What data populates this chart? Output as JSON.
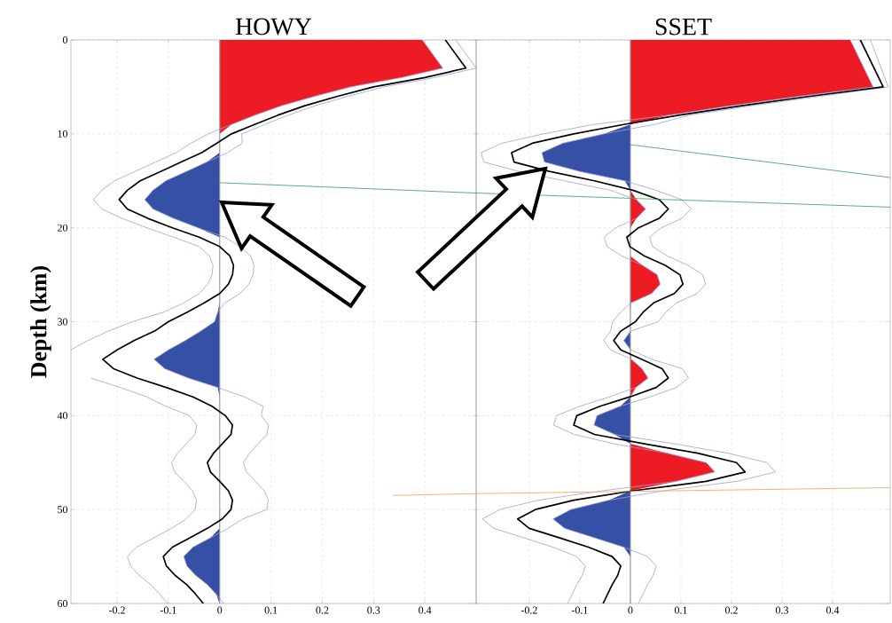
{
  "chart_data": [
    {
      "type": "line",
      "orientation": "horizontal",
      "title": "HOWY",
      "ylabel": "Depth (km)",
      "grid": true,
      "x": [
        0,
        3,
        4,
        5,
        6,
        7,
        8,
        9,
        10,
        11,
        12,
        13,
        14,
        15,
        16,
        17,
        18,
        19,
        20,
        21,
        22,
        23,
        24,
        25,
        26,
        27,
        28,
        29,
        30,
        31,
        32,
        33,
        34,
        35,
        36,
        37,
        38,
        39,
        40,
        41,
        42,
        43,
        44,
        45,
        46,
        47,
        48,
        49,
        50,
        51,
        52,
        53,
        54,
        55,
        56,
        57,
        58,
        59,
        60
      ],
      "series": [
        {
          "type": "area",
          "color": "#ed1c24",
          "values": [
            0.395,
            0.435,
            0.355,
            0.255,
            0.185,
            0.121,
            0.069,
            0.023,
            0,
            0,
            0,
            0,
            0,
            0,
            0,
            0,
            0,
            0,
            0,
            0,
            0,
            0,
            0,
            0,
            0,
            0,
            0,
            0,
            0,
            0,
            0,
            0,
            0,
            0,
            0,
            0,
            0,
            0,
            0,
            0,
            0,
            0,
            0,
            0,
            0,
            0,
            0,
            0,
            0,
            0,
            0,
            0,
            0,
            0,
            0,
            0,
            0,
            0,
            0
          ]
        },
        {
          "type": "area",
          "color": "#3550a5",
          "values": [
            0,
            0,
            0,
            0,
            0,
            0,
            0,
            0,
            0,
            0,
            0,
            -0.025,
            -0.065,
            -0.105,
            -0.13,
            -0.146,
            -0.13,
            -0.09,
            -0.042,
            0,
            0,
            0,
            0,
            0,
            0,
            0,
            0,
            -0.004,
            -0.01,
            -0.037,
            -0.067,
            -0.1,
            -0.128,
            -0.107,
            -0.061,
            -0.004,
            0,
            0,
            0,
            0,
            0,
            0,
            0,
            0,
            0,
            0,
            0,
            0,
            0,
            0,
            0,
            -0.018,
            -0.052,
            -0.07,
            -0.064,
            -0.047,
            -0.024,
            -0.007,
            0
          ]
        },
        {
          "color": "#a0a0d7",
          "values": [
            0.395,
            0.435,
            0.355,
            0.255,
            0.185,
            0.121,
            0.069,
            0.023,
            -0.022,
            -0.056,
            -0.085,
            -0.125,
            -0.165,
            -0.205,
            -0.23,
            -0.246,
            -0.23,
            -0.19,
            -0.142,
            -0.09,
            -0.04,
            -0.02,
            -0.013,
            -0.015,
            -0.023,
            -0.04,
            -0.07,
            -0.11,
            -0.17,
            -0.217,
            -0.257,
            -0.29,
            null,
            null,
            -0.251,
            -0.194,
            -0.142,
            -0.105,
            -0.059,
            -0.045,
            -0.048,
            -0.065,
            -0.082,
            -0.094,
            -0.088,
            -0.07,
            -0.053,
            -0.045,
            -0.048,
            -0.065,
            -0.094,
            -0.128,
            -0.162,
            -0.18,
            -0.174,
            -0.157,
            -0.134,
            -0.117,
            -0.102
          ]
        },
        {
          "color": "#a0a0d7",
          "values": [
            0.46,
            0.5,
            0.42,
            0.32,
            0.25,
            0.186,
            0.134,
            0.088,
            0.043,
            0.044,
            0.015,
            -0.025,
            -0.065,
            -0.105,
            -0.13,
            -0.146,
            -0.13,
            -0.09,
            -0.042,
            0.01,
            0.04,
            0.06,
            0.067,
            0.065,
            0.057,
            0.04,
            0.01,
            -0.004,
            -0.01,
            -0.037,
            -0.067,
            -0.1,
            -0.128,
            -0.107,
            -0.061,
            -0.004,
            0.048,
            0.085,
            0.081,
            0.095,
            0.092,
            0.075,
            0.058,
            0.046,
            0.052,
            0.07,
            0.087,
            0.095,
            0.092,
            0.045,
            0.016,
            -0.018,
            -0.052,
            -0.07,
            -0.064,
            -0.047,
            -0.024,
            -0.007,
            0.008
          ]
        },
        {
          "color": "#000000",
          "values": [
            0.44,
            0.48,
            0.4,
            0.3,
            0.23,
            0.166,
            0.114,
            0.068,
            0.023,
            -0.006,
            -0.035,
            -0.075,
            -0.115,
            -0.155,
            -0.18,
            -0.196,
            -0.18,
            -0.14,
            -0.092,
            -0.04,
            0,
            0.02,
            0.027,
            0.025,
            0.017,
            0,
            -0.03,
            -0.064,
            -0.1,
            -0.127,
            -0.167,
            -0.2,
            -0.228,
            -0.207,
            -0.161,
            -0.104,
            -0.052,
            -0.015,
            0.011,
            0.025,
            0.022,
            0.005,
            -0.012,
            -0.024,
            -0.018,
            0,
            0.017,
            0.025,
            0.022,
            0.005,
            -0.024,
            -0.058,
            -0.092,
            -0.11,
            -0.104,
            -0.087,
            -0.064,
            -0.047,
            -0.032
          ]
        },
        {
          "color": "#3a9a5c",
          "x": [
            15.2,
            16.3
          ],
          "values": [
            0,
            0.5
          ]
        },
        {
          "color": "#f5a04a",
          "x": [
            48.5,
            48.3
          ],
          "values": [
            0.338,
            0.5
          ]
        }
      ],
      "xlim": [
        -0.29,
        0.5
      ],
      "xticks": [
        -0.2,
        -0.1,
        0,
        0.1,
        0.2,
        0.3,
        0.4
      ],
      "ylim": [
        60,
        0
      ],
      "yticks": [
        0,
        10,
        20,
        30,
        40,
        50,
        60
      ]
    },
    {
      "type": "line",
      "orientation": "horizontal",
      "title": "SSET",
      "grid": true,
      "tick_labels": "x",
      "x": [
        0,
        5,
        6,
        7,
        8,
        9,
        10,
        11,
        12,
        13,
        14,
        15,
        16,
        17,
        18,
        19,
        20,
        21,
        22,
        23,
        24,
        25,
        26,
        27,
        28,
        29,
        30,
        31,
        32,
        33,
        34,
        35,
        36,
        37,
        38,
        39,
        40,
        41,
        42,
        43,
        44,
        45,
        46,
        47,
        48,
        49,
        50,
        51,
        52,
        53,
        54,
        55,
        56,
        57,
        58,
        59,
        60
      ],
      "series": [
        {
          "type": "area",
          "color": "#ed1c24",
          "values": [
            0.435,
            0.48,
            0.335,
            0.2,
            0.078,
            0,
            0,
            0,
            0,
            0,
            0,
            0,
            0,
            0.012,
            0.03,
            0.012,
            0,
            0,
            0,
            0,
            0.024,
            0.053,
            0.059,
            0.042,
            0.001,
            0,
            0,
            0,
            0,
            0,
            0.002,
            0.023,
            0.035,
            0.011,
            0,
            0,
            0,
            0,
            0,
            0,
            0.073,
            0.15,
            0.167,
            0.09,
            0,
            0,
            0,
            0,
            0,
            0,
            0,
            0,
            0,
            0,
            0,
            0,
            0
          ]
        },
        {
          "type": "area",
          "color": "#3550a5",
          "values": [
            0,
            0,
            0,
            0,
            0,
            0,
            -0.052,
            -0.134,
            -0.175,
            -0.17,
            -0.1,
            -0.011,
            0,
            0,
            0,
            0,
            0,
            0,
            0,
            0,
            0,
            0,
            0,
            0,
            0,
            0,
            0,
            0,
            -0.013,
            0,
            0,
            0,
            0,
            0,
            0,
            -0.02,
            -0.066,
            -0.072,
            -0.031,
            0,
            0,
            0,
            0,
            0,
            0,
            -0.042,
            -0.118,
            -0.153,
            -0.13,
            -0.071,
            -0.013,
            0,
            0,
            0,
            0,
            0,
            0
          ]
        },
        {
          "color": "#a0a0d7",
          "values": [
            0.435,
            0.48,
            0.335,
            0.2,
            0.078,
            -0.073,
            -0.172,
            -0.254,
            -0.295,
            -0.29,
            -0.22,
            -0.131,
            -0.04,
            0.012,
            0.03,
            0.012,
            -0.029,
            -0.052,
            -0.046,
            -0.017,
            0.024,
            0.053,
            0.059,
            0.042,
            0.001,
            -0.02,
            -0.035,
            -0.039,
            -0.053,
            -0.039,
            0.002,
            0.023,
            0.035,
            0.011,
            -0.041,
            -0.1,
            -0.146,
            -0.152,
            -0.111,
            -0.032,
            0.073,
            0.15,
            0.167,
            0.09,
            -0.055,
            -0.182,
            -0.258,
            -0.293,
            -0.27,
            -0.211,
            -0.153,
            -0.106,
            -0.089,
            -0.095,
            -0.106,
            -0.115,
            -0.124
          ]
        },
        {
          "color": "#a0a0d7",
          "values": [
            0.475,
            0.51,
            0.375,
            0.24,
            0.118,
            0.047,
            -0.052,
            -0.134,
            -0.175,
            -0.17,
            -0.1,
            -0.011,
            0.05,
            0.102,
            0.12,
            0.102,
            0.061,
            0.038,
            0.044,
            0.073,
            0.114,
            0.143,
            0.149,
            0.132,
            0.091,
            0.07,
            0.055,
            0.001,
            -0.013,
            0.001,
            0.042,
            0.103,
            0.115,
            0.091,
            0.039,
            -0.02,
            -0.066,
            -0.072,
            -0.031,
            0.088,
            0.193,
            0.27,
            0.287,
            0.21,
            0.065,
            -0.042,
            -0.118,
            -0.153,
            -0.13,
            -0.071,
            -0.013,
            0.034,
            0.051,
            0.045,
            0.034,
            0.025,
            0.016
          ]
        },
        {
          "color": "#000000",
          "values": [
            0.455,
            0.5,
            0.355,
            0.22,
            0.098,
            -0.013,
            -0.112,
            -0.194,
            -0.235,
            -0.23,
            -0.16,
            -0.071,
            0.005,
            0.057,
            0.075,
            0.057,
            0.016,
            -0.007,
            -0.001,
            0.028,
            0.069,
            0.098,
            0.104,
            0.087,
            0.046,
            0.025,
            0.01,
            -0.019,
            -0.033,
            -0.019,
            0.022,
            0.063,
            0.075,
            0.051,
            -0.001,
            -0.06,
            -0.106,
            -0.112,
            -0.071,
            0.028,
            0.133,
            0.21,
            0.227,
            0.15,
            0.005,
            -0.112,
            -0.188,
            -0.223,
            -0.2,
            -0.141,
            -0.083,
            -0.036,
            -0.019,
            -0.025,
            -0.036,
            -0.045,
            -0.054
          ]
        },
        {
          "color": "#3a9a5c",
          "x": [
            16.3,
            17.8
          ],
          "values": [
            -0.305,
            0.514
          ]
        },
        {
          "color": "#3a9a5c",
          "x": [
            11.15,
            14.65
          ],
          "values": [
            0,
            0.514
          ]
        },
        {
          "color": "#f5a04a",
          "x": [
            48.3,
            47.67
          ],
          "values": [
            -0.305,
            0.514
          ]
        }
      ],
      "xlim": [
        -0.305,
        0.514
      ],
      "xticks": [
        -0.2,
        -0.1,
        0,
        0.1,
        0.2,
        0.3,
        0.4
      ],
      "ylim": [
        60,
        0
      ],
      "yticks": [
        0,
        10,
        20,
        30,
        40,
        50,
        60
      ]
    }
  ]
}
